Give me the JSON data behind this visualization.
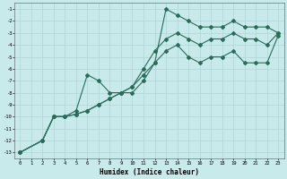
{
  "xlabel": "Humidex (Indice chaleur)",
  "bg_color": "#c8eaea",
  "grid_color": "#b0d4d4",
  "line_color": "#2a6b5a",
  "xlim": [
    -0.5,
    23.5
  ],
  "ylim": [
    -13.5,
    -0.5
  ],
  "xticks": [
    0,
    1,
    2,
    3,
    4,
    5,
    6,
    7,
    8,
    9,
    10,
    11,
    12,
    13,
    14,
    15,
    16,
    17,
    18,
    19,
    20,
    21,
    22,
    23
  ],
  "yticks": [
    -13,
    -12,
    -11,
    -10,
    -9,
    -8,
    -7,
    -6,
    -5,
    -4,
    -3,
    -2,
    -1
  ],
  "line1_x": [
    0,
    2,
    3,
    4,
    5,
    6,
    7,
    8,
    9,
    10,
    11,
    12,
    13,
    14,
    15,
    16,
    17,
    18,
    19,
    20,
    21,
    22,
    23
  ],
  "line1_y": [
    -13,
    -12,
    -10,
    -10,
    -9.5,
    -6.5,
    -7,
    -8,
    -8,
    -8,
    -7,
    -5.5,
    -1,
    -1.5,
    -2,
    -2.5,
    -2.5,
    -2.5,
    -2,
    -2.5,
    -2.5,
    -2.5,
    -3
  ],
  "line2_x": [
    0,
    2,
    3,
    4,
    5,
    6,
    7,
    8,
    9,
    10,
    11,
    12,
    13,
    14,
    15,
    16,
    17,
    18,
    19,
    20,
    21,
    22,
    23
  ],
  "line2_y": [
    -13,
    -12,
    -10,
    -10,
    -9.8,
    -9.5,
    -9,
    -8.5,
    -8,
    -7.5,
    -6,
    -4.5,
    -3.5,
    -3,
    -3.5,
    -4,
    -3.5,
    -3.5,
    -3,
    -3.5,
    -3.5,
    -4,
    -3
  ],
  "line3_x": [
    0,
    2,
    3,
    4,
    5,
    6,
    7,
    8,
    9,
    10,
    11,
    12,
    13,
    14,
    15,
    16,
    17,
    18,
    19,
    20,
    21,
    22,
    23
  ],
  "line3_y": [
    -13,
    -12,
    -10,
    -10,
    -9.8,
    -9.5,
    -9,
    -8.5,
    -8,
    -7.5,
    -6.5,
    -5.5,
    -4.5,
    -4,
    -5,
    -5.5,
    -5,
    -5,
    -4.5,
    -5.5,
    -5.5,
    -5.5,
    -3.2
  ]
}
